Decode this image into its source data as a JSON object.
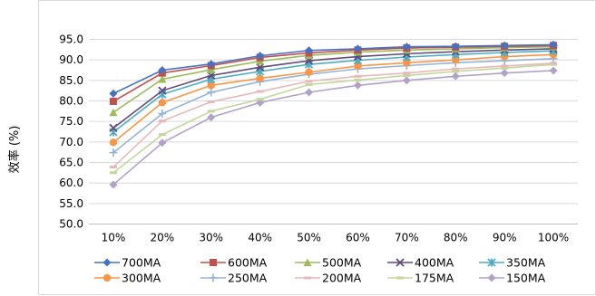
{
  "chart_data": {
    "type": "line",
    "title": "",
    "xlabel": "",
    "ylabel": "效率 (%)",
    "categories": [
      "10%",
      "20%",
      "30%",
      "40%",
      "50%",
      "60%",
      "70%",
      "80%",
      "90%",
      "100%"
    ],
    "ylim": [
      50.0,
      95.0
    ],
    "yticks": [
      "50.0",
      "55.0",
      "60.0",
      "65.0",
      "70.0",
      "75.0",
      "80.0",
      "85.0",
      "90.0",
      "95.0"
    ],
    "grid": true,
    "legend": "bottom",
    "series": [
      {
        "name": "700MA",
        "color": "#4472C4",
        "marker": "diamond",
        "values": [
          81.8,
          87.5,
          89.0,
          91.0,
          92.3,
          92.7,
          93.2,
          93.3,
          93.5,
          93.7
        ]
      },
      {
        "name": "600MA",
        "color": "#C0504D",
        "marker": "square",
        "values": [
          79.9,
          86.8,
          88.6,
          90.6,
          91.7,
          92.4,
          92.9,
          93.1,
          93.3,
          93.5
        ]
      },
      {
        "name": "500MA",
        "color": "#9BBB59",
        "marker": "triangle",
        "values": [
          77.2,
          85.3,
          87.6,
          89.7,
          91.1,
          91.9,
          92.4,
          92.7,
          93.0,
          93.2
        ]
      },
      {
        "name": "400MA",
        "color": "#604A7B",
        "marker": "x",
        "values": [
          73.4,
          82.5,
          86.2,
          88.2,
          89.8,
          90.8,
          91.5,
          92.0,
          92.4,
          92.7
        ]
      },
      {
        "name": "350MA",
        "color": "#4BACC6",
        "marker": "star",
        "values": [
          72.4,
          81.6,
          85.3,
          87.2,
          88.9,
          89.9,
          90.7,
          91.3,
          91.8,
          92.2
        ]
      },
      {
        "name": "300MA",
        "color": "#F79646",
        "marker": "circle",
        "values": [
          69.9,
          79.6,
          83.8,
          85.5,
          87.0,
          88.5,
          89.3,
          90.0,
          90.8,
          91.3
        ]
      },
      {
        "name": "250MA",
        "color": "#95B3D7",
        "marker": "plus",
        "values": [
          67.4,
          76.9,
          82.1,
          84.7,
          86.5,
          87.8,
          88.6,
          89.3,
          89.8,
          90.3
        ]
      },
      {
        "name": "200MA",
        "color": "#E6B9B8",
        "marker": "dash",
        "values": [
          63.9,
          75.1,
          79.8,
          82.3,
          84.8,
          86.0,
          86.8,
          87.8,
          88.5,
          89.2
        ]
      },
      {
        "name": "175MA",
        "color": "#C3D69B",
        "marker": "dash",
        "values": [
          62.5,
          71.8,
          77.5,
          80.4,
          84.0,
          85.1,
          86.2,
          87.2,
          88.0,
          88.9
        ]
      },
      {
        "name": "150MA",
        "color": "#B3A2C7",
        "marker": "diamond",
        "values": [
          59.6,
          69.8,
          76.0,
          79.6,
          82.1,
          83.8,
          85.0,
          86.0,
          86.8,
          87.4
        ]
      }
    ]
  }
}
